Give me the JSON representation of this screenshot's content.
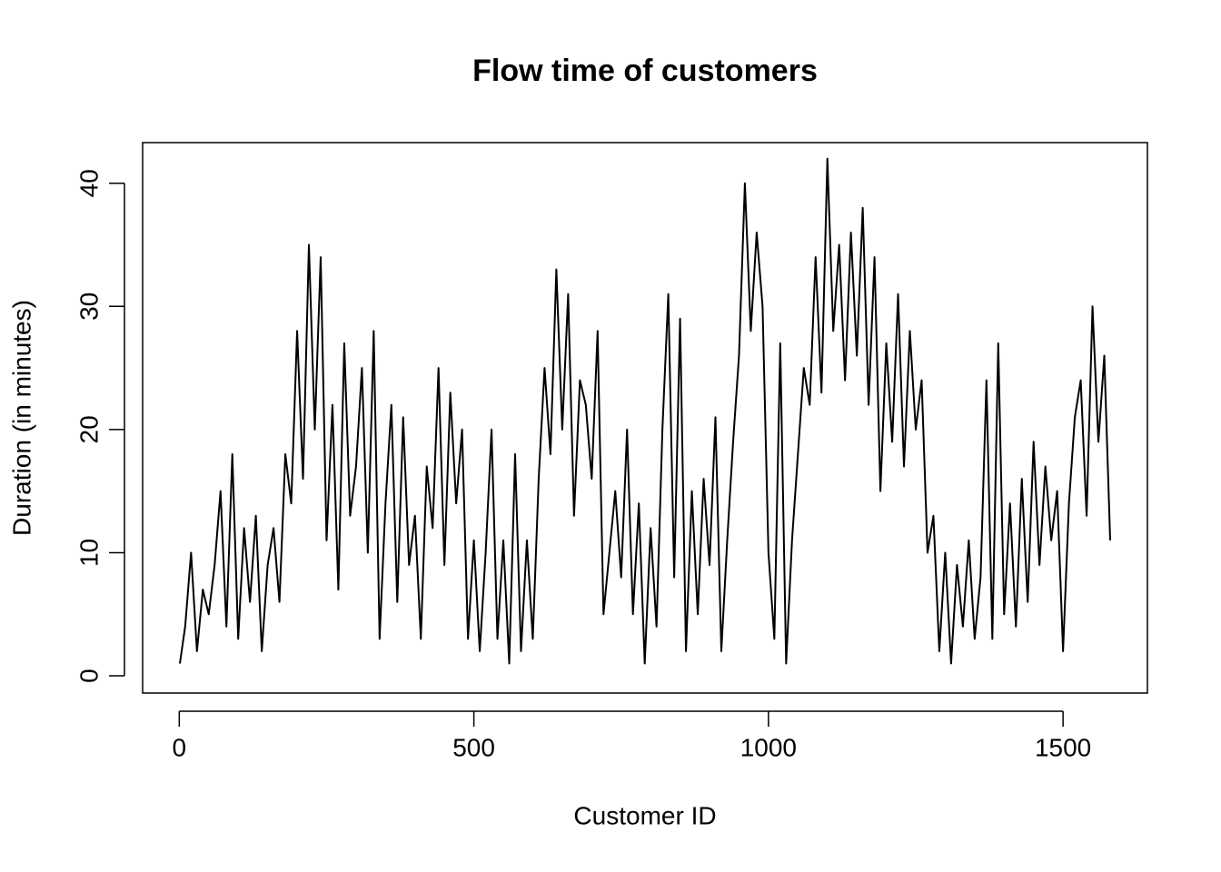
{
  "chart_data": {
    "type": "line",
    "title": "Flow time of customers",
    "x_label": "Customer ID",
    "y_label": "Duration (in minutes)",
    "x": [
      1,
      10,
      20,
      30,
      40,
      50,
      60,
      70,
      80,
      90,
      100,
      110,
      120,
      130,
      140,
      150,
      160,
      170,
      180,
      190,
      200,
      210,
      220,
      230,
      240,
      250,
      260,
      270,
      280,
      290,
      300,
      310,
      320,
      330,
      340,
      350,
      360,
      370,
      380,
      390,
      400,
      410,
      420,
      430,
      440,
      450,
      460,
      470,
      480,
      490,
      500,
      510,
      520,
      530,
      540,
      550,
      560,
      570,
      580,
      590,
      600,
      610,
      620,
      630,
      640,
      650,
      660,
      670,
      680,
      690,
      700,
      710,
      720,
      730,
      740,
      750,
      760,
      770,
      780,
      790,
      800,
      810,
      820,
      830,
      840,
      850,
      860,
      870,
      880,
      890,
      900,
      910,
      920,
      930,
      940,
      950,
      960,
      970,
      980,
      990,
      1000,
      1010,
      1020,
      1030,
      1040,
      1050,
      1060,
      1070,
      1080,
      1090,
      1100,
      1110,
      1120,
      1130,
      1140,
      1150,
      1160,
      1170,
      1180,
      1190,
      1200,
      1210,
      1220,
      1230,
      1240,
      1250,
      1260,
      1270,
      1280,
      1290,
      1300,
      1310,
      1320,
      1330,
      1340,
      1350,
      1360,
      1370,
      1380,
      1390,
      1400,
      1410,
      1420,
      1430,
      1440,
      1450,
      1460,
      1470,
      1480,
      1490,
      1500,
      1510,
      1520,
      1530,
      1540,
      1550,
      1560,
      1570,
      1580
    ],
    "series": [
      {
        "name": "Duration",
        "color": "#000000",
        "values": [
          1,
          4,
          10,
          2,
          7,
          5,
          9,
          15,
          4,
          18,
          3,
          12,
          6,
          13,
          2,
          9,
          12,
          6,
          18,
          14,
          28,
          16,
          35,
          20,
          34,
          11,
          22,
          7,
          27,
          13,
          17,
          25,
          10,
          28,
          3,
          14,
          22,
          6,
          21,
          9,
          13,
          3,
          17,
          12,
          25,
          9,
          23,
          14,
          20,
          3,
          11,
          2,
          10,
          20,
          3,
          11,
          1,
          18,
          2,
          11,
          3,
          16,
          25,
          18,
          33,
          20,
          31,
          13,
          24,
          22,
          16,
          28,
          5,
          10,
          15,
          8,
          20,
          5,
          14,
          1,
          12,
          4,
          20,
          31,
          8,
          29,
          2,
          15,
          5,
          16,
          9,
          21,
          2,
          11,
          19,
          26,
          40,
          28,
          36,
          30,
          10,
          3,
          27,
          1,
          11,
          18,
          25,
          22,
          34,
          23,
          42,
          28,
          35,
          24,
          36,
          26,
          38,
          22,
          34,
          15,
          27,
          19,
          31,
          17,
          28,
          20,
          24,
          10,
          13,
          2,
          10,
          1,
          9,
          4,
          11,
          3,
          8,
          24,
          3,
          27,
          5,
          14,
          4,
          16,
          6,
          19,
          9,
          17,
          11,
          15,
          2,
          14,
          21,
          24,
          13,
          30,
          19,
          26,
          11
        ]
      }
    ],
    "xlim": [
      -62.2,
      1643.2
    ],
    "ylim": [
      -1.4,
      43.3
    ],
    "xticks": [
      0,
      500,
      1000,
      1500
    ],
    "yticks": [
      0,
      10,
      20,
      30,
      40
    ],
    "grid": false
  }
}
